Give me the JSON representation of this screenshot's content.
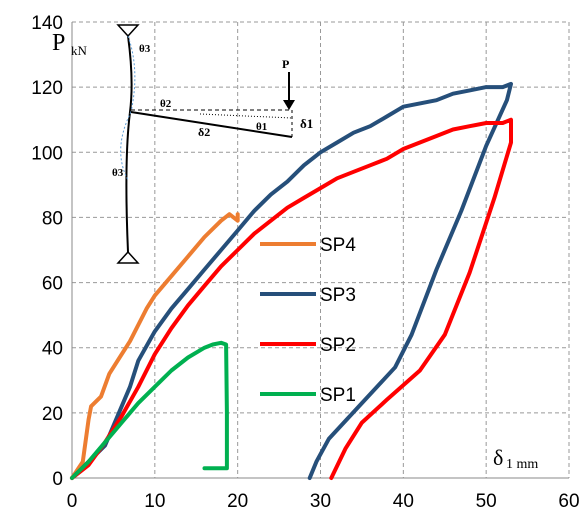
{
  "chart_data": {
    "type": "line",
    "title": "",
    "ylabel_main": "P",
    "ylabel_sub": "kN",
    "xlabel_main": "δ",
    "xlabel_sub": "1 mm",
    "xlim": [
      0,
      60
    ],
    "ylim": [
      0,
      140
    ],
    "x_ticks": [
      0,
      10,
      20,
      30,
      40,
      50,
      60
    ],
    "y_ticks": [
      0,
      20,
      40,
      60,
      80,
      100,
      120,
      140
    ],
    "grid": "dashed",
    "legend_position": "center",
    "series": [
      {
        "name": "SP4",
        "color": "#ED7D31",
        "points": [
          [
            0,
            0
          ],
          [
            1.3,
            5
          ],
          [
            2,
            18
          ],
          [
            2.3,
            22
          ],
          [
            3.5,
            25
          ],
          [
            4.5,
            32
          ],
          [
            5.5,
            36
          ],
          [
            7,
            42
          ],
          [
            9,
            52
          ],
          [
            10,
            56
          ],
          [
            12,
            62
          ],
          [
            14,
            68
          ],
          [
            16,
            74
          ],
          [
            18,
            79
          ],
          [
            19,
            81
          ],
          [
            20,
            79
          ],
          [
            20,
            81
          ]
        ]
      },
      {
        "name": "SP3",
        "color": "#264F7A",
        "points": [
          [
            0,
            0
          ],
          [
            2,
            5
          ],
          [
            4,
            10
          ],
          [
            6,
            22
          ],
          [
            7,
            28
          ],
          [
            8,
            36
          ],
          [
            10,
            45
          ],
          [
            12,
            52
          ],
          [
            14,
            58
          ],
          [
            16,
            64
          ],
          [
            18,
            70
          ],
          [
            20,
            76
          ],
          [
            22,
            82
          ],
          [
            24,
            87
          ],
          [
            26,
            91
          ],
          [
            28,
            96
          ],
          [
            30,
            100
          ],
          [
            32,
            103
          ],
          [
            34,
            106
          ],
          [
            36,
            108
          ],
          [
            38,
            111
          ],
          [
            40,
            114
          ],
          [
            42,
            115
          ],
          [
            44,
            116
          ],
          [
            46,
            118
          ],
          [
            48,
            119
          ],
          [
            50,
            120
          ],
          [
            52,
            120
          ],
          [
            53,
            121
          ],
          [
            52.5,
            116
          ],
          [
            50,
            102
          ],
          [
            47,
            82
          ],
          [
            44,
            64
          ],
          [
            41,
            44
          ],
          [
            39,
            34
          ],
          [
            35,
            23
          ],
          [
            31,
            12
          ],
          [
            29.5,
            5
          ],
          [
            28.7,
            0
          ]
        ]
      },
      {
        "name": "SP2",
        "color": "#FF0000",
        "points": [
          [
            0,
            0
          ],
          [
            2,
            4
          ],
          [
            4,
            11
          ],
          [
            6,
            19
          ],
          [
            8,
            28
          ],
          [
            10,
            38
          ],
          [
            12,
            46
          ],
          [
            14,
            53
          ],
          [
            16,
            59
          ],
          [
            18,
            65
          ],
          [
            20,
            70
          ],
          [
            22,
            75
          ],
          [
            24,
            79
          ],
          [
            26,
            83
          ],
          [
            28,
            86
          ],
          [
            30,
            89
          ],
          [
            32,
            92
          ],
          [
            34,
            94
          ],
          [
            36,
            96
          ],
          [
            38,
            98
          ],
          [
            40,
            101
          ],
          [
            42,
            103
          ],
          [
            44,
            105
          ],
          [
            46,
            107
          ],
          [
            48,
            108
          ],
          [
            50,
            109
          ],
          [
            52,
            109
          ],
          [
            53,
            110
          ],
          [
            53,
            103
          ],
          [
            51,
            86
          ],
          [
            48,
            63
          ],
          [
            45,
            44
          ],
          [
            42,
            33
          ],
          [
            38,
            24
          ],
          [
            35,
            17
          ],
          [
            33,
            9
          ],
          [
            31.3,
            0
          ]
        ]
      },
      {
        "name": "SP1",
        "color": "#00B050",
        "points": [
          [
            0,
            0
          ],
          [
            2,
            5
          ],
          [
            4,
            11
          ],
          [
            6,
            17
          ],
          [
            8,
            23
          ],
          [
            10,
            28
          ],
          [
            12,
            33
          ],
          [
            14,
            37
          ],
          [
            16,
            40
          ],
          [
            17,
            41
          ],
          [
            18,
            41.5
          ],
          [
            18.6,
            41
          ],
          [
            18.7,
            20
          ],
          [
            18.7,
            3
          ],
          [
            16,
            3
          ]
        ]
      }
    ]
  },
  "inset": {
    "labels": {
      "theta3_top": "θ3",
      "theta3_bottom": "θ3",
      "theta2": "θ2",
      "theta1": "θ1",
      "delta2": "δ2",
      "delta1": "δ1",
      "load": "P"
    }
  }
}
